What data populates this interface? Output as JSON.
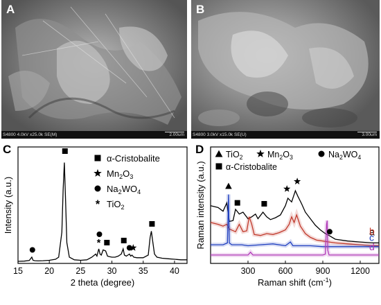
{
  "panels": {
    "A": {
      "label": "A",
      "scale_text": "S4800 4.0kV x25.0k SE(M)",
      "scale_bar": "2.00um"
    },
    "B": {
      "label": "B",
      "scale_text": "S4800 3.0kV x15.0k SE(U)",
      "scale_bar": "3.00um"
    },
    "C": {
      "label": "C"
    },
    "D": {
      "label": "D"
    }
  },
  "chart_data": [
    {
      "panel": "C",
      "type": "line",
      "xlabel": "2 theta (degree)",
      "ylabel": "Intensity (a.u.)",
      "xlim": [
        15,
        42
      ],
      "xticks": [
        15,
        20,
        25,
        30,
        35,
        40
      ],
      "legend": [
        {
          "marker": "square",
          "text": "α-Cristobalite"
        },
        {
          "marker": "star",
          "text": "Mn2O3"
        },
        {
          "marker": "circle",
          "text": "Na2WO4"
        },
        {
          "marker": "asterisk",
          "text": "TiO2"
        }
      ],
      "series": [
        {
          "color": "#000000",
          "x": [
            15,
            16,
            16.8,
            17.2,
            17.4,
            17.7,
            18.2,
            19,
            20,
            21,
            21.5,
            22,
            22.2,
            22.4,
            22.6,
            22.8,
            23.2,
            24,
            25,
            26,
            26.8,
            27.2,
            27.4,
            27.6,
            27.9,
            28.1,
            28.3,
            28.6,
            29,
            29.3,
            29.6,
            30,
            30.5,
            31,
            31.5,
            31.8,
            32,
            32.3,
            32.8,
            33,
            33.2,
            33.5,
            34,
            35,
            35.8,
            36.1,
            36.3,
            36.5,
            36.8,
            37.2,
            38,
            39,
            40,
            41,
            42
          ],
          "y": [
            2,
            2.2,
            2.8,
            6,
            3,
            2.6,
            2.4,
            2.6,
            3,
            4,
            6,
            30,
            70,
            97,
            60,
            20,
            6,
            3.5,
            3,
            3.5,
            6,
            8,
            9,
            7,
            14,
            9,
            8,
            13,
            12,
            7,
            6.5,
            6,
            6,
            7,
            9,
            14,
            8,
            7,
            9,
            7,
            8,
            6,
            5.5,
            5.5,
            8,
            25,
            31,
            22,
            9,
            6,
            5,
            4.5,
            4,
            3.5,
            3.5
          ]
        }
      ],
      "annotations": [
        {
          "marker": "square",
          "x": 22.5,
          "y": 108
        },
        {
          "marker": "circle",
          "x": 17.3,
          "y": 13
        },
        {
          "marker": "circle",
          "x": 28,
          "y": 28
        },
        {
          "marker": "asterisk",
          "x": 27.9,
          "y": 20
        },
        {
          "marker": "square",
          "x": 29.2,
          "y": 20
        },
        {
          "marker": "square",
          "x": 31.9,
          "y": 22
        },
        {
          "marker": "circle",
          "x": 32.8,
          "y": 15
        },
        {
          "marker": "star",
          "x": 33.4,
          "y": 15
        },
        {
          "marker": "square",
          "x": 36.4,
          "y": 38
        }
      ]
    },
    {
      "panel": "D",
      "type": "line",
      "xlabel": "Raman shift (cm⁻¹)",
      "ylabel": "Raman intensity (a.u.)",
      "xlim": [
        0,
        1350
      ],
      "xticks": [
        300,
        600,
        900,
        1200
      ],
      "legend": [
        {
          "marker": "triangle",
          "text": "TiO2"
        },
        {
          "marker": "star",
          "text": "Mn2O3"
        },
        {
          "marker": "circle",
          "text": "Na2WO4"
        },
        {
          "marker": "square",
          "text": "α-Cristobalite"
        }
      ],
      "series": [
        {
          "name": "a",
          "color": "#000000",
          "x": [
            0,
            60,
            100,
            130,
            150,
            180,
            200,
            230,
            260,
            300,
            330,
            360,
            380,
            420,
            450,
            480,
            520,
            560,
            600,
            620,
            650,
            680,
            700,
            730,
            760,
            800,
            840,
            880,
            920,
            950,
            1000,
            1100,
            1200,
            1300,
            1350
          ],
          "y": [
            62,
            60,
            56,
            65,
            45,
            46,
            58,
            53,
            55,
            48,
            50,
            53,
            48,
            55,
            50,
            47,
            49,
            52,
            62,
            70,
            66,
            78,
            72,
            64,
            55,
            48,
            41,
            36,
            32,
            30,
            26,
            24,
            23,
            22,
            22
          ]
        },
        {
          "name": "b",
          "color": "#c0392b",
          "x": [
            0,
            60,
            100,
            130,
            150,
            200,
            230,
            260,
            290,
            310,
            330,
            350,
            400,
            450,
            500,
            550,
            600,
            630,
            650,
            670,
            690,
            720,
            760,
            800,
            850,
            900,
            950,
            1000,
            1100,
            1200,
            1300,
            1350
          ],
          "y": [
            44,
            42,
            40,
            42,
            37,
            34,
            42,
            34,
            35,
            50,
            42,
            31,
            30,
            32,
            31,
            33,
            36,
            42,
            50,
            44,
            52,
            40,
            32,
            28,
            25,
            24,
            23,
            22,
            21,
            20,
            19,
            19
          ]
        },
        {
          "name": "c",
          "color": "#1f3fbf",
          "x": [
            0,
            100,
            135,
            144,
            150,
            170,
            200,
            250,
            300,
            400,
            500,
            600,
            640,
            660,
            700,
            800,
            900,
            1000,
            1100,
            1200,
            1300,
            1350
          ],
          "y": [
            20,
            20,
            22,
            74,
            22,
            20,
            20,
            20,
            19,
            20,
            21,
            19,
            23,
            19,
            19,
            19,
            18,
            18,
            18,
            18,
            18,
            18
          ]
        },
        {
          "name": "d",
          "color": "#b03ab8",
          "x": [
            0,
            100,
            200,
            300,
            320,
            340,
            400,
            500,
            700,
            800,
            900,
            920,
            930,
            935,
            940,
            950,
            1000,
            1100,
            1200,
            1300,
            1350
          ],
          "y": [
            9,
            9,
            9,
            9,
            12,
            9,
            9,
            9,
            9,
            9,
            9,
            10,
            42,
            46,
            14,
            9,
            9,
            9,
            9,
            9,
            9
          ]
        }
      ],
      "series_labels": [
        "a",
        "b",
        "c",
        "d"
      ],
      "annotations": [
        {
          "marker": "triangle",
          "x": 144,
          "y": 83
        },
        {
          "marker": "square",
          "x": 215,
          "y": 65
        },
        {
          "marker": "square",
          "x": 430,
          "y": 64
        },
        {
          "marker": "star",
          "x": 612,
          "y": 80
        },
        {
          "marker": "star",
          "x": 695,
          "y": 88
        },
        {
          "marker": "circle",
          "x": 955,
          "y": 34
        }
      ]
    }
  ]
}
